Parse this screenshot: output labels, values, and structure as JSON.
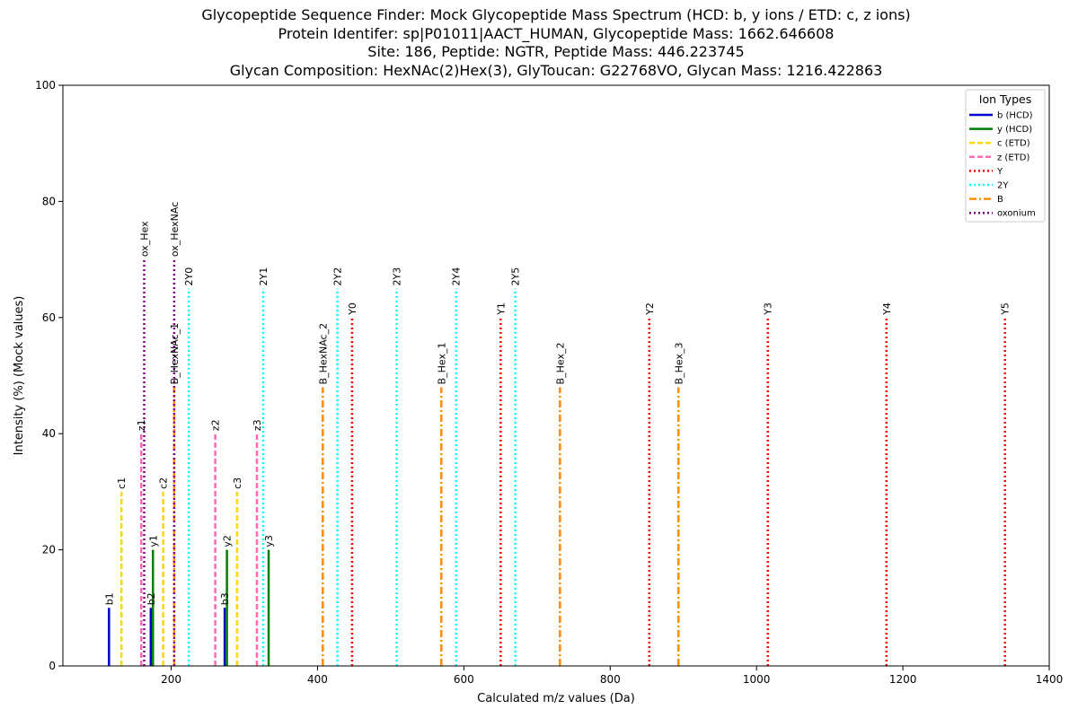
{
  "chart_data": {
    "type": "bar",
    "title_lines": [
      "Glycopeptide Sequence Finder: Mock Glycopeptide Mass Spectrum (HCD: b, y ions / ETD: c, z ions)",
      "Protein Identifer: sp|P01011|AACT_HUMAN, Glycopeptide Mass: 1662.646608",
      "Site: 186, Peptide: NGTR, Peptide Mass: 446.223745",
      "Glycan Composition: HexNAc(2)Hex(3), GlyToucan: G22768VO, Glycan Mass: 1216.422863"
    ],
    "xlabel": "Calculated m/z values (Da)",
    "ylabel": "Intensity (%) (Mock values)",
    "xlim": [
      52,
      1400
    ],
    "ylim": [
      0,
      100
    ],
    "xticks": [
      200,
      400,
      600,
      800,
      1000,
      1200,
      1400
    ],
    "yticks": [
      0,
      20,
      40,
      60,
      80,
      100
    ],
    "grid": false,
    "legend": {
      "title": "Ion Types",
      "position": "top-right",
      "entries": [
        {
          "label": "b (HCD)",
          "color": "#0000cc",
          "dash": "solid"
        },
        {
          "label": "y (HCD)",
          "color": "#008000",
          "dash": "solid"
        },
        {
          "label": "c (ETD)",
          "color": "#ffd700",
          "dash": "dashed"
        },
        {
          "label": "z (ETD)",
          "color": "#ff69b4",
          "dash": "dashed"
        },
        {
          "label": "Y",
          "color": "#ff0000",
          "dash": "dotted"
        },
        {
          "label": "2Y",
          "color": "#00ffff",
          "dash": "dotted"
        },
        {
          "label": "B",
          "color": "#ff8c00",
          "dash": "dashdot"
        },
        {
          "label": "oxonium",
          "color": "#800080",
          "dash": "dotted"
        }
      ]
    },
    "series": [
      {
        "name": "b (HCD)",
        "peaks": [
          {
            "mz": 115.0,
            "intensity": 10,
            "label": "b1"
          },
          {
            "mz": 172.1,
            "intensity": 10,
            "label": "b2"
          },
          {
            "mz": 273.1,
            "intensity": 10,
            "label": "b3"
          }
        ]
      },
      {
        "name": "y (HCD)",
        "peaks": [
          {
            "mz": 175.1,
            "intensity": 20,
            "label": "y1"
          },
          {
            "mz": 276.2,
            "intensity": 20,
            "label": "y2"
          },
          {
            "mz": 333.2,
            "intensity": 20,
            "label": "y3"
          }
        ]
      },
      {
        "name": "c (ETD)",
        "peaks": [
          {
            "mz": 132.1,
            "intensity": 30,
            "label": "c1"
          },
          {
            "mz": 189.1,
            "intensity": 30,
            "label": "c2"
          },
          {
            "mz": 290.1,
            "intensity": 30,
            "label": "c3"
          }
        ]
      },
      {
        "name": "z (ETD)",
        "peaks": [
          {
            "mz": 159.1,
            "intensity": 40,
            "label": "z1"
          },
          {
            "mz": 260.2,
            "intensity": 40,
            "label": "z2"
          },
          {
            "mz": 317.2,
            "intensity": 40,
            "label": "z3"
          }
        ]
      },
      {
        "name": "Y",
        "peaks": [
          {
            "mz": 447.2,
            "intensity": 60,
            "label": "Y0"
          },
          {
            "mz": 650.3,
            "intensity": 60,
            "label": "Y1"
          },
          {
            "mz": 853.4,
            "intensity": 60,
            "label": "Y2"
          },
          {
            "mz": 1015.4,
            "intensity": 60,
            "label": "Y3"
          },
          {
            "mz": 1177.5,
            "intensity": 60,
            "label": "Y4"
          },
          {
            "mz": 1339.5,
            "intensity": 60,
            "label": "Y5"
          }
        ]
      },
      {
        "name": "2Y",
        "peaks": [
          {
            "mz": 224.1,
            "intensity": 65,
            "label": "2Y0"
          },
          {
            "mz": 325.7,
            "intensity": 65,
            "label": "2Y1"
          },
          {
            "mz": 427.2,
            "intensity": 65,
            "label": "2Y2"
          },
          {
            "mz": 508.2,
            "intensity": 65,
            "label": "2Y3"
          },
          {
            "mz": 589.3,
            "intensity": 65,
            "label": "2Y4"
          },
          {
            "mz": 670.3,
            "intensity": 65,
            "label": "2Y5"
          }
        ]
      },
      {
        "name": "B",
        "peaks": [
          {
            "mz": 204.1,
            "intensity": 48,
            "label": "B_HexNAc_1"
          },
          {
            "mz": 407.2,
            "intensity": 48,
            "label": "B_HexNAc_2"
          },
          {
            "mz": 569.2,
            "intensity": 48,
            "label": "B_Hex_1"
          },
          {
            "mz": 731.3,
            "intensity": 48,
            "label": "B_Hex_2"
          },
          {
            "mz": 893.3,
            "intensity": 48,
            "label": "B_Hex_3"
          }
        ]
      },
      {
        "name": "oxonium",
        "peaks": [
          {
            "mz": 163.1,
            "intensity": 70,
            "label": "ox_Hex"
          },
          {
            "mz": 204.1,
            "intensity": 70,
            "label": "ox_HexNAc"
          }
        ]
      }
    ]
  }
}
